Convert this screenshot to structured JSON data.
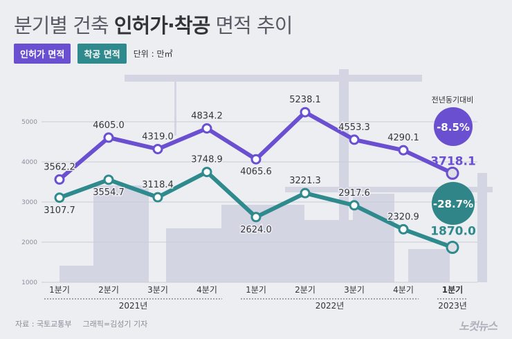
{
  "title": {
    "normal": "분기별 건축 ",
    "strong": "인허가·착공",
    "normal2": " 면적 추이"
  },
  "legend": {
    "permit": "인허가 면적",
    "start": "착공 면적",
    "unit": "단위 : 만㎡"
  },
  "badges": {
    "caption": "전년동기대비",
    "permit_change": "-8.5%",
    "start_change": "-28.7%"
  },
  "source": {
    "data": "자료 : 국토교통부",
    "graphic": "그래픽=김성기 기자"
  },
  "logo": "노컷뉴스",
  "colors": {
    "permit": "#6a4fd0",
    "start": "#2e8a8c",
    "start_last": "#2f8587"
  },
  "chart_data": {
    "type": "line",
    "categories": [
      "1분기",
      "2분기",
      "3분기",
      "4분기",
      "1분기",
      "2분기",
      "3분기",
      "4분기",
      "1분기"
    ],
    "year_groups": [
      {
        "label": "2021년",
        "from": 0,
        "to": 3
      },
      {
        "label": "2022년",
        "from": 4,
        "to": 7
      },
      {
        "label": "2023년",
        "from": 8,
        "to": 8
      }
    ],
    "series": [
      {
        "name": "인허가 면적",
        "values": [
          3562.2,
          4605.0,
          4319.0,
          4834.2,
          4065.6,
          5238.1,
          4553.3,
          4290.1,
          3718.1
        ]
      },
      {
        "name": "착공 면적",
        "values": [
          3107.7,
          3554.7,
          3118.4,
          3748.9,
          2624.0,
          3221.3,
          2917.6,
          2320.9,
          1870.0
        ]
      }
    ],
    "value_labels": [
      [
        "3562.2",
        "4605.0",
        "4319.0",
        "4834.2",
        "4065.6",
        "5238.1",
        "4553.3",
        "4290.1",
        "3718.1"
      ],
      [
        "3107.7",
        "3554.7",
        "3118.4",
        "3748.9",
        "2624.0",
        "3221.3",
        "2917.6",
        "2320.9",
        "1870.0"
      ]
    ],
    "yticks": [
      1000,
      2000,
      3000,
      4000,
      5000
    ],
    "ylim": [
      1000,
      5600
    ],
    "grid": true
  }
}
